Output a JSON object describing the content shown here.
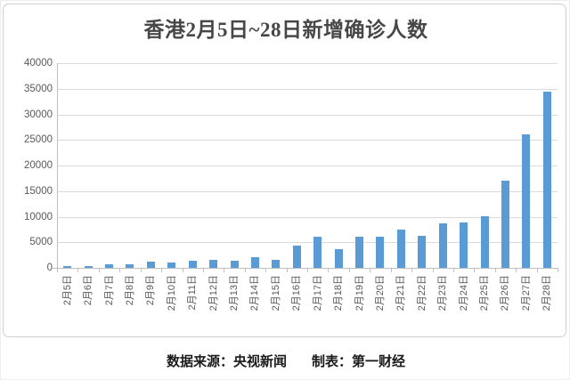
{
  "page": {
    "title": "香港2月5日~28日新增确诊人数",
    "footer": {
      "source": "数据来源：央视新闻",
      "maker": "制表：第一财经"
    }
  },
  "chart_data": {
    "type": "bar",
    "title": "香港2月5日~28日新增确诊人数",
    "categories": [
      "2月5日",
      "2月6日",
      "2月7日",
      "2月8日",
      "2月9日",
      "2月10日",
      "2月11日",
      "2月12日",
      "2月13日",
      "2月14日",
      "2月15日",
      "2月16日",
      "2月17日",
      "2月18日",
      "2月19日",
      "2月20日",
      "2月21日",
      "2月22日",
      "2月23日",
      "2月24日",
      "2月25日",
      "2月26日",
      "2月27日",
      "2月28日"
    ],
    "values": [
      351,
      342,
      614,
      625,
      1161,
      986,
      1325,
      1514,
      1347,
      2071,
      1619,
      4285,
      6116,
      3629,
      6063,
      6067,
      7533,
      6211,
      8674,
      8798,
      10010,
      17063,
      26026,
      34466
    ],
    "xlabel": "",
    "ylabel": "",
    "ylim": [
      0,
      40000
    ],
    "yticks": [
      0,
      5000,
      10000,
      15000,
      20000,
      25000,
      30000,
      35000,
      40000
    ],
    "grid": true,
    "legend_position": "none",
    "colors": {
      "bar": "#5b9bd5",
      "grid": "#d9d9d9",
      "axis": "#bfbfbf",
      "tick_label": "#595959",
      "title": "#474747",
      "footer": "#1a1a1a",
      "frame_border": "#cfcfcf"
    }
  }
}
